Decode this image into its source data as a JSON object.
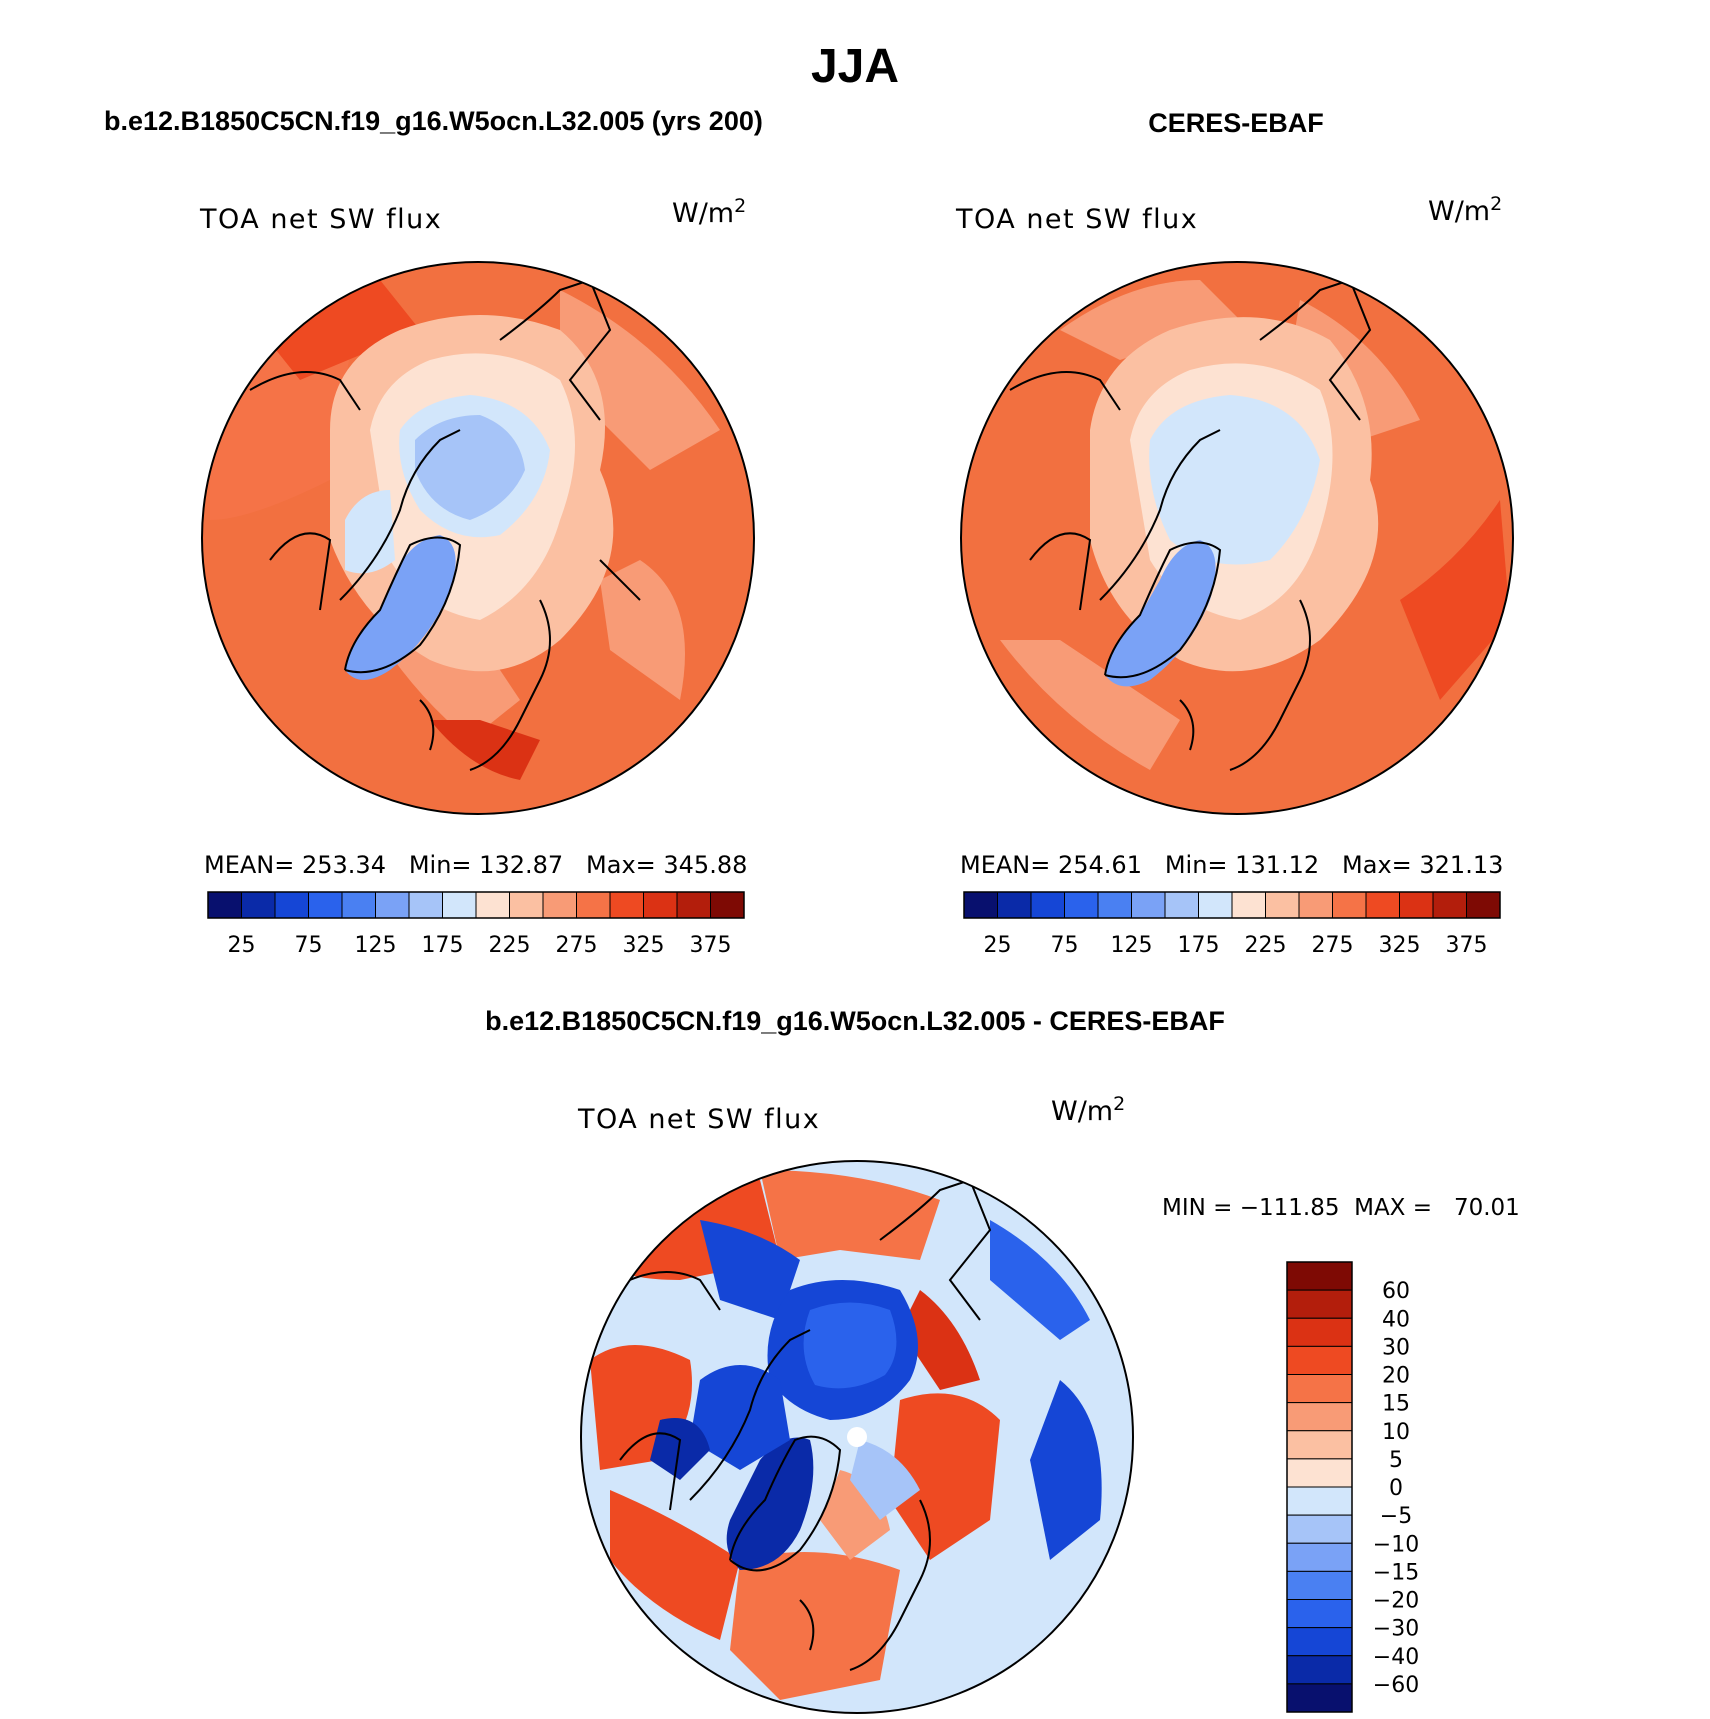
{
  "page_title": "JJA",
  "palette_colors": {
    "abs": [
      "#08106e",
      "#0a2aa8",
      "#1546d6",
      "#2a62ec",
      "#4a80f2",
      "#7aa2f6",
      "#a6c4f8",
      "#d2e6fb",
      "#fde2d2",
      "#fbc0a2",
      "#f89b76",
      "#f57347",
      "#ee4a22",
      "#db3214",
      "#b31e0c",
      "#7e0a04"
    ],
    "diff": [
      "#08106e",
      "#0a2aa8",
      "#1546d6",
      "#2a62ec",
      "#4a80f2",
      "#7aa2f6",
      "#a6c4f8",
      "#d2e6fb",
      "#fde2d2",
      "#fbc0a2",
      "#f89b76",
      "#f57347",
      "#ee4a22",
      "#db3214",
      "#b31e0c",
      "#7e0a04"
    ]
  },
  "panels": [
    {
      "header": "b.e12.B1850C5CN.f19_g16.W5ocn.L32.005 (yrs 200)",
      "variable": "TOA net SW flux",
      "units_base": "W/m",
      "units_exp": "2",
      "stats": "MEAN= 253.34   Min= 132.87   Max= 345.88",
      "colorbar_labels": [
        "25",
        "75",
        "125",
        "175",
        "225",
        "275",
        "325",
        "375"
      ]
    },
    {
      "header": "CERES-EBAF",
      "variable": "TOA net SW flux",
      "units_base": "W/m",
      "units_exp": "2",
      "stats": "MEAN= 254.61   Min= 131.12   Max= 321.13",
      "colorbar_labels": [
        "25",
        "75",
        "125",
        "175",
        "225",
        "275",
        "325",
        "375"
      ]
    }
  ],
  "diff_panel": {
    "header": "b.e12.B1850C5CN.f19_g16.W5ocn.L32.005 - CERES-EBAF",
    "variable": "TOA net SW flux",
    "units_base": "W/m",
    "units_exp": "2",
    "stats": "MIN = −111.85  MAX =   70.01",
    "colorbar_labels": [
      "60",
      "40",
      "30",
      "20",
      "15",
      "10",
      "5",
      "0",
      "−5",
      "−10",
      "−15",
      "−20",
      "−30",
      "−40",
      "−60"
    ]
  }
}
